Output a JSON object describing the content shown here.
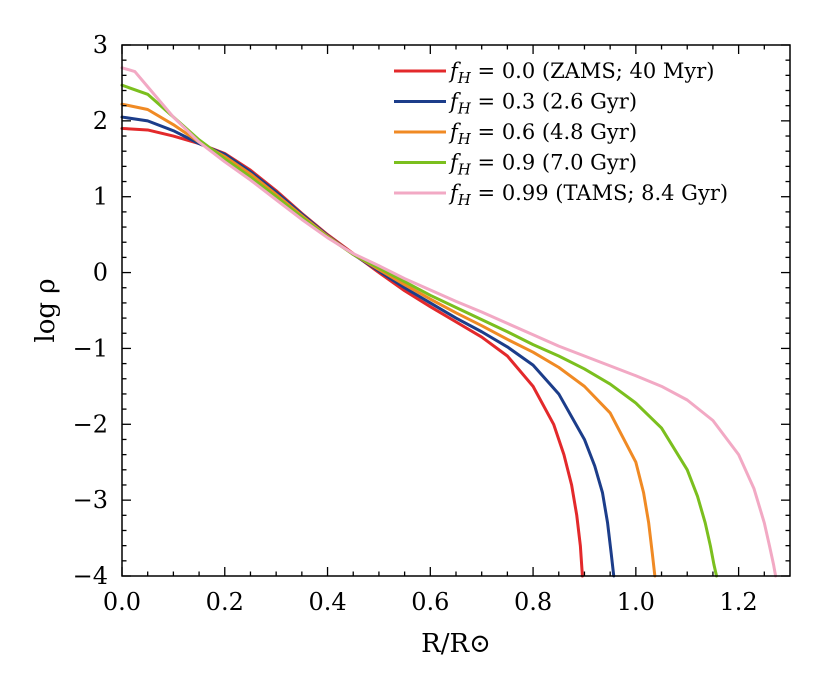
{
  "chart_data": {
    "type": "line",
    "title": "",
    "xlabel": "R/R⊙",
    "ylabel": "log ρ",
    "xlim": [
      0.0,
      1.3
    ],
    "ylim": [
      -4,
      3
    ],
    "xticks": [
      0.0,
      0.2,
      0.4,
      0.6,
      0.8,
      1.0,
      1.2
    ],
    "xtick_labels": [
      "0.0",
      "0.2",
      "0.4",
      "0.6",
      "0.8",
      "1.0",
      "1.2"
    ],
    "yticks": [
      -4,
      -3,
      -2,
      -1,
      0,
      1,
      2,
      3
    ],
    "ytick_labels": [
      "−4",
      "−3",
      "−2",
      "−1",
      "0",
      "1",
      "2",
      "3"
    ],
    "grid": false,
    "legend_position": "top-right",
    "series": [
      {
        "name": "f_H = 0.0 (ZAMS; 40 Myr)",
        "label_value": "0.0",
        "label_note": "(ZAMS; 40 Myr)",
        "color": "#e3292b",
        "x": [
          0.0,
          0.05,
          0.1,
          0.15,
          0.2,
          0.25,
          0.3,
          0.35,
          0.4,
          0.45,
          0.5,
          0.55,
          0.6,
          0.65,
          0.7,
          0.75,
          0.8,
          0.84,
          0.86,
          0.875,
          0.885,
          0.892,
          0.896
        ],
        "y": [
          1.9,
          1.88,
          1.8,
          1.7,
          1.57,
          1.35,
          1.08,
          0.78,
          0.5,
          0.25,
          0.0,
          -0.24,
          -0.45,
          -0.65,
          -0.85,
          -1.1,
          -1.5,
          -2.0,
          -2.4,
          -2.8,
          -3.2,
          -3.6,
          -4.0
        ]
      },
      {
        "name": "f_H = 0.3 (2.6 Gyr)",
        "label_value": "0.3",
        "label_note": "(2.6 Gyr)",
        "color": "#1c3d8a",
        "x": [
          0.0,
          0.05,
          0.1,
          0.15,
          0.2,
          0.25,
          0.3,
          0.35,
          0.4,
          0.45,
          0.5,
          0.55,
          0.6,
          0.65,
          0.7,
          0.75,
          0.8,
          0.85,
          0.9,
          0.92,
          0.935,
          0.945,
          0.952,
          0.957
        ],
        "y": [
          2.05,
          2.0,
          1.87,
          1.7,
          1.56,
          1.33,
          1.06,
          0.77,
          0.49,
          0.24,
          0.02,
          -0.2,
          -0.4,
          -0.6,
          -0.78,
          -0.98,
          -1.22,
          -1.6,
          -2.2,
          -2.55,
          -2.9,
          -3.3,
          -3.7,
          -4.0
        ]
      },
      {
        "name": "f_H = 0.6 (4.8 Gyr)",
        "label_value": "0.6",
        "label_note": "(4.8 Gyr)",
        "color": "#f08a24",
        "x": [
          0.0,
          0.05,
          0.1,
          0.15,
          0.2,
          0.25,
          0.3,
          0.35,
          0.4,
          0.45,
          0.5,
          0.55,
          0.6,
          0.65,
          0.7,
          0.75,
          0.8,
          0.85,
          0.9,
          0.95,
          1.0,
          1.015,
          1.025,
          1.032,
          1.037
        ],
        "y": [
          2.22,
          2.15,
          1.95,
          1.72,
          1.53,
          1.3,
          1.03,
          0.75,
          0.48,
          0.24,
          0.04,
          -0.16,
          -0.35,
          -0.53,
          -0.7,
          -0.88,
          -1.05,
          -1.25,
          -1.5,
          -1.85,
          -2.5,
          -2.9,
          -3.3,
          -3.7,
          -4.0
        ]
      },
      {
        "name": "f_H = 0.9 (7.0 Gyr)",
        "label_value": "0.9",
        "label_note": "(7.0 Gyr)",
        "color": "#7bbf1e",
        "x": [
          0.0,
          0.05,
          0.1,
          0.15,
          0.2,
          0.25,
          0.3,
          0.35,
          0.4,
          0.45,
          0.5,
          0.55,
          0.6,
          0.65,
          0.7,
          0.75,
          0.8,
          0.85,
          0.9,
          0.95,
          1.0,
          1.05,
          1.1,
          1.12,
          1.135,
          1.145,
          1.152,
          1.157
        ],
        "y": [
          2.47,
          2.35,
          2.05,
          1.75,
          1.5,
          1.26,
          1.0,
          0.73,
          0.47,
          0.24,
          0.06,
          -0.12,
          -0.3,
          -0.46,
          -0.62,
          -0.78,
          -0.95,
          -1.1,
          -1.27,
          -1.47,
          -1.72,
          -2.05,
          -2.6,
          -2.95,
          -3.3,
          -3.6,
          -3.85,
          -4.0
        ]
      },
      {
        "name": "f_H = 0.99 (TAMS; 8.4 Gyr)",
        "label_value": "0.99",
        "label_note": "(TAMS; 8.4 Gyr)",
        "color": "#f2a9c4",
        "x": [
          0.0,
          0.025,
          0.05,
          0.1,
          0.15,
          0.2,
          0.25,
          0.3,
          0.35,
          0.4,
          0.45,
          0.5,
          0.55,
          0.6,
          0.65,
          0.7,
          0.75,
          0.8,
          0.85,
          0.9,
          0.95,
          1.0,
          1.05,
          1.1,
          1.15,
          1.2,
          1.23,
          1.25,
          1.26,
          1.268,
          1.272
        ],
        "y": [
          2.7,
          2.65,
          2.45,
          2.05,
          1.72,
          1.46,
          1.22,
          0.96,
          0.7,
          0.46,
          0.25,
          0.09,
          -0.08,
          -0.23,
          -0.38,
          -0.52,
          -0.67,
          -0.82,
          -0.97,
          -1.1,
          -1.23,
          -1.36,
          -1.5,
          -1.68,
          -1.95,
          -2.4,
          -2.85,
          -3.3,
          -3.6,
          -3.85,
          -4.0
        ]
      }
    ]
  }
}
